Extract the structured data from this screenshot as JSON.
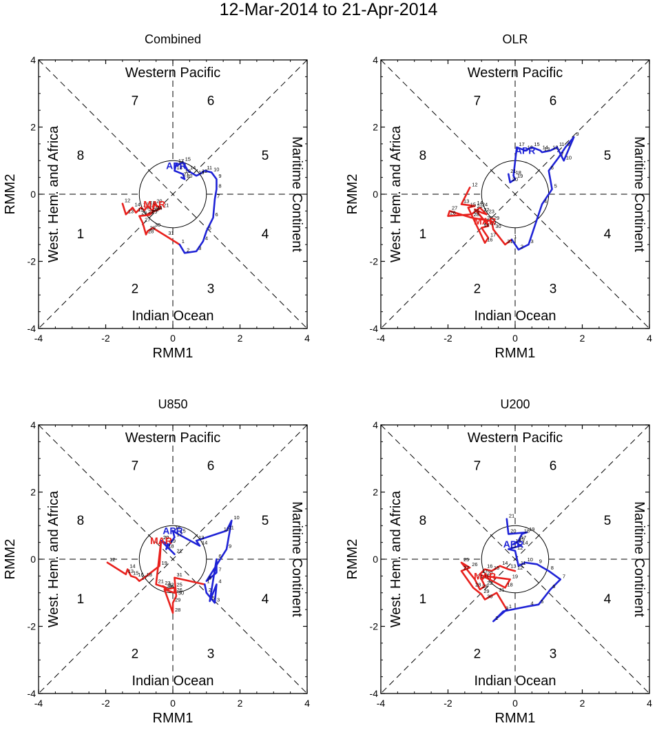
{
  "main_title": "12-Mar-2014 to 21-Apr-2014",
  "colors": {
    "march": "#e8211d",
    "april": "#1e22d6",
    "axis": "#000000"
  },
  "axis_labels": {
    "x": "RMM1",
    "y": "RMM2"
  },
  "region_labels": {
    "top": "Western Pacific",
    "bottom": "Indian Ocean",
    "left": "West. Hem. and Africa",
    "right": "Maritime Continent"
  },
  "phase_labels": [
    "1",
    "2",
    "3",
    "4",
    "5",
    "6",
    "7",
    "8"
  ],
  "tick_labels": [
    "-4",
    "-2",
    "0",
    "2",
    "4"
  ],
  "chart_data": [
    {
      "type": "line",
      "title": "Combined",
      "xlabel": "RMM1",
      "ylabel": "RMM2",
      "xlim": [
        -4,
        4
      ],
      "ylim": [
        -4,
        4
      ],
      "series": [
        {
          "name": "MAR",
          "color": "#e8211d",
          "points": [
            {
              "day": "12",
              "x": -1.5,
              "y": -0.28
            },
            {
              "day": "13",
              "x": -1.4,
              "y": -0.6
            },
            {
              "day": "14",
              "x": -1.2,
              "y": -0.4
            },
            {
              "day": "15",
              "x": -1.1,
              "y": -0.55
            },
            {
              "day": "16",
              "x": -0.95,
              "y": -0.4
            },
            {
              "day": "17",
              "x": -0.85,
              "y": -0.48
            },
            {
              "day": "18",
              "x": -0.75,
              "y": -0.35
            },
            {
              "day": "19",
              "x": -0.6,
              "y": -0.5
            },
            {
              "day": "20",
              "x": -0.55,
              "y": -0.3
            },
            {
              "day": "21",
              "x": -0.35,
              "y": -0.42
            },
            {
              "day": "22",
              "x": -0.65,
              "y": -0.55
            },
            {
              "day": "23",
              "x": -0.8,
              "y": -0.62
            },
            {
              "day": "24",
              "x": -0.55,
              "y": -0.5
            },
            {
              "day": "25",
              "x": -0.7,
              "y": -0.62
            },
            {
              "day": "26",
              "x": -1.0,
              "y": -0.65
            },
            {
              "day": "27",
              "x": -0.9,
              "y": -0.85
            },
            {
              "day": "28",
              "x": -0.8,
              "y": -1.2
            },
            {
              "day": "29",
              "x": -0.75,
              "y": -1.1
            },
            {
              "day": "30",
              "x": -0.6,
              "y": -1.0
            },
            {
              "day": "31",
              "x": -0.2,
              "y": -1.25
            }
          ]
        },
        {
          "name": "APR",
          "color": "#1e22d6",
          "points": [
            {
              "day": "1",
              "x": 0.2,
              "y": -1.5
            },
            {
              "day": "2",
              "x": 0.35,
              "y": -1.75
            },
            {
              "day": "3",
              "x": 0.7,
              "y": -1.7
            },
            {
              "day": "4",
              "x": 0.9,
              "y": -1.4
            },
            {
              "day": "5",
              "x": 1.0,
              "y": -1.1
            },
            {
              "day": "6",
              "x": 1.2,
              "y": -0.7
            },
            {
              "day": "7",
              "x": 1.25,
              "y": -0.15
            },
            {
              "day": "8",
              "x": 1.3,
              "y": 0.15
            },
            {
              "day": "9",
              "x": 1.3,
              "y": 0.45
            },
            {
              "day": "10",
              "x": 1.15,
              "y": 0.65
            },
            {
              "day": "11",
              "x": 0.95,
              "y": 0.7
            },
            {
              "day": "12",
              "x": 0.8,
              "y": 0.6
            },
            {
              "day": "13",
              "x": 0.7,
              "y": 0.55
            },
            {
              "day": "14",
              "x": 0.45,
              "y": 0.7
            },
            {
              "day": "15",
              "x": 0.3,
              "y": 0.95
            },
            {
              "day": "16",
              "x": 0.1,
              "y": 0.85
            },
            {
              "day": "17",
              "x": 0.1,
              "y": 0.9
            },
            {
              "day": "18",
              "x": 0.05,
              "y": 0.7
            },
            {
              "day": "19",
              "x": 0.3,
              "y": 0.6
            },
            {
              "day": "20",
              "x": 0.35,
              "y": 0.45
            },
            {
              "day": "21",
              "x": 0.25,
              "y": 0.5
            }
          ]
        }
      ]
    },
    {
      "type": "line",
      "title": "OLR",
      "xlabel": "RMM1",
      "ylabel": "RMM2",
      "xlim": [
        -4,
        4
      ],
      "ylim": [
        -4,
        4
      ],
      "series": [
        {
          "name": "MAR",
          "color": "#e8211d",
          "points": [
            {
              "day": "12",
              "x": -1.35,
              "y": 0.2
            },
            {
              "day": "13",
              "x": -1.6,
              "y": -0.3
            },
            {
              "day": "14",
              "x": -1.2,
              "y": -0.35
            },
            {
              "day": "15",
              "x": -1.4,
              "y": -0.4
            },
            {
              "day": "16",
              "x": -0.9,
              "y": -1.45
            },
            {
              "day": "17",
              "x": -0.8,
              "y": -1.3
            },
            {
              "day": "18",
              "x": -1.0,
              "y": -1.0
            },
            {
              "day": "19",
              "x": -0.8,
              "y": -0.95
            },
            {
              "day": "20",
              "x": -0.9,
              "y": -0.8
            },
            {
              "day": "21",
              "x": -1.2,
              "y": -0.45
            },
            {
              "day": "22",
              "x": -1.0,
              "y": -0.55
            },
            {
              "day": "23",
              "x": -0.85,
              "y": -0.6
            },
            {
              "day": "24",
              "x": -1.05,
              "y": -0.4
            },
            {
              "day": "25",
              "x": -1.3,
              "y": -0.6
            },
            {
              "day": "26",
              "x": -2.0,
              "y": -0.65
            },
            {
              "day": "27",
              "x": -1.95,
              "y": -0.5
            },
            {
              "day": "28",
              "x": -1.3,
              "y": -0.7
            },
            {
              "day": "29",
              "x": -0.7,
              "y": -0.8
            },
            {
              "day": "30",
              "x": -0.65,
              "y": -1.05
            },
            {
              "day": "31",
              "x": -0.3,
              "y": -1.5
            }
          ]
        },
        {
          "name": "APR",
          "color": "#1e22d6",
          "points": [
            {
              "day": "1",
              "x": -0.1,
              "y": -1.35
            },
            {
              "day": "2",
              "x": 0.1,
              "y": -1.65
            },
            {
              "day": "3",
              "x": 0.4,
              "y": -1.5
            },
            {
              "day": "4",
              "x": 0.8,
              "y": -0.3
            },
            {
              "day": "5",
              "x": 1.1,
              "y": 0.15
            },
            {
              "day": "6",
              "x": 1.0,
              "y": 0.7
            },
            {
              "day": "7",
              "x": 1.3,
              "y": 1.1
            },
            {
              "day": "8",
              "x": 1.5,
              "y": 1.4
            },
            {
              "day": "9",
              "x": 1.75,
              "y": 1.7
            },
            {
              "day": "10",
              "x": 1.45,
              "y": 1.0
            },
            {
              "day": "11",
              "x": 1.25,
              "y": 1.4
            },
            {
              "day": "12",
              "x": 1.05,
              "y": 1.3
            },
            {
              "day": "13",
              "x": 0.8,
              "y": 1.25
            },
            {
              "day": "14",
              "x": 0.75,
              "y": 1.3
            },
            {
              "day": "15",
              "x": 0.5,
              "y": 1.4
            },
            {
              "day": "16",
              "x": 0.3,
              "y": 1.3
            },
            {
              "day": "17",
              "x": 0.05,
              "y": 1.4
            },
            {
              "day": "18",
              "x": -0.05,
              "y": 0.55
            },
            {
              "day": "19",
              "x": 0.0,
              "y": 0.45
            },
            {
              "day": "20",
              "x": -0.15,
              "y": 0.35
            },
            {
              "day": "21",
              "x": -0.2,
              "y": 0.6
            }
          ]
        }
      ]
    },
    {
      "type": "line",
      "title": "U850",
      "xlabel": "RMM1",
      "ylabel": "RMM2",
      "xlim": [
        -4,
        4
      ],
      "ylim": [
        -4,
        4
      ],
      "series": [
        {
          "name": "MAR",
          "color": "#e8211d",
          "points": [
            {
              "day": "12",
              "x": -1.95,
              "y": -0.1
            },
            {
              "day": "13",
              "x": -1.4,
              "y": -0.45
            },
            {
              "day": "14",
              "x": -1.35,
              "y": -0.3
            },
            {
              "day": "15",
              "x": -1.25,
              "y": -0.5
            },
            {
              "day": "16",
              "x": -1.1,
              "y": -0.55
            },
            {
              "day": "17",
              "x": -1.0,
              "y": -0.65
            },
            {
              "day": "18",
              "x": -0.85,
              "y": -0.55
            },
            {
              "day": "19",
              "x": -0.4,
              "y": -0.2
            },
            {
              "day": "20",
              "x": -0.35,
              "y": 0.55
            },
            {
              "day": "21",
              "x": -0.5,
              "y": -0.75
            },
            {
              "day": "22",
              "x": -0.2,
              "y": -0.85
            },
            {
              "day": "23",
              "x": -0.3,
              "y": -0.8
            },
            {
              "day": "24",
              "x": -0.2,
              "y": -0.9
            },
            {
              "day": "25",
              "x": 0.05,
              "y": -0.85
            },
            {
              "day": "26",
              "x": 0.05,
              "y": -1.0
            },
            {
              "day": "27",
              "x": -0.25,
              "y": -0.9
            },
            {
              "day": "28",
              "x": 0.0,
              "y": -1.6
            },
            {
              "day": "29",
              "x": 0.0,
              "y": -1.3
            },
            {
              "day": "30",
              "x": 0.1,
              "y": -1.1
            },
            {
              "day": "31",
              "x": 0.05,
              "y": -0.55
            }
          ]
        },
        {
          "name": "APR",
          "color": "#1e22d6",
          "points": [
            {
              "day": "1",
              "x": 0.95,
              "y": -0.75
            },
            {
              "day": "2",
              "x": 1.0,
              "y": -1.0
            },
            {
              "day": "3",
              "x": 1.25,
              "y": -1.3
            },
            {
              "day": "4",
              "x": 1.3,
              "y": -0.75
            },
            {
              "day": "5",
              "x": 1.1,
              "y": -1.25
            },
            {
              "day": "6",
              "x": 1.3,
              "y": 0.0
            },
            {
              "day": "7",
              "x": 1.3,
              "y": -0.4
            },
            {
              "day": "8",
              "x": 1.0,
              "y": -0.65
            },
            {
              "day": "9",
              "x": 1.6,
              "y": 0.3
            },
            {
              "day": "10",
              "x": 1.75,
              "y": 1.15
            },
            {
              "day": "11",
              "x": 1.6,
              "y": 0.85
            },
            {
              "day": "12",
              "x": 1.45,
              "y": 0.8
            },
            {
              "day": "13",
              "x": 0.7,
              "y": 0.55
            },
            {
              "day": "14",
              "x": 0.8,
              "y": 0.4
            },
            {
              "day": "15",
              "x": 0.15,
              "y": 0.75
            },
            {
              "day": "16",
              "x": 0.0,
              "y": 0.85
            },
            {
              "day": "17",
              "x": 0.05,
              "y": 0.65
            },
            {
              "day": "18",
              "x": -0.2,
              "y": 0.3
            },
            {
              "day": "19",
              "x": -0.15,
              "y": 0.45
            },
            {
              "day": "20",
              "x": -0.35,
              "y": 0.55
            },
            {
              "day": "21",
              "x": 0.05,
              "y": 0.15
            }
          ]
        }
      ]
    },
    {
      "type": "line",
      "title": "U200",
      "xlabel": "RMM1",
      "ylabel": "RMM2",
      "xlim": [
        -4,
        4
      ],
      "ylim": [
        -4,
        4
      ],
      "series": [
        {
          "name": "MAR",
          "color": "#e8211d",
          "points": [
            {
              "day": "12",
              "x": 0.0,
              "y": -0.35
            },
            {
              "day": "13",
              "x": -0.2,
              "y": -0.3
            },
            {
              "day": "14",
              "x": -0.45,
              "y": -0.2
            },
            {
              "day": "15",
              "x": -0.7,
              "y": -0.35
            },
            {
              "day": "16",
              "x": -0.9,
              "y": -0.3
            },
            {
              "day": "17",
              "x": -1.05,
              "y": -0.45
            },
            {
              "day": "18",
              "x": -0.3,
              "y": -0.85
            },
            {
              "day": "19",
              "x": -0.15,
              "y": -0.6
            },
            {
              "day": "20",
              "x": -0.9,
              "y": -0.5
            },
            {
              "day": "21",
              "x": -1.0,
              "y": -0.6
            },
            {
              "day": "22",
              "x": -0.9,
              "y": -0.8
            },
            {
              "day": "23",
              "x": -1.05,
              "y": -0.9
            },
            {
              "day": "24",
              "x": -1.2,
              "y": -0.6
            },
            {
              "day": "25",
              "x": -1.6,
              "y": -0.1
            },
            {
              "day": "26",
              "x": -1.35,
              "y": -0.25
            },
            {
              "day": "27",
              "x": -1.6,
              "y": -0.35
            },
            {
              "day": "28",
              "x": -1.25,
              "y": -0.85
            },
            {
              "day": "29",
              "x": -1.0,
              "y": -1.05
            },
            {
              "day": "30",
              "x": -0.9,
              "y": -1.2
            },
            {
              "day": "31",
              "x": -0.55,
              "y": -1.0
            }
          ]
        },
        {
          "name": "APR",
          "color": "#1e22d6",
          "points": [
            {
              "day": "1",
              "x": -0.25,
              "y": -1.5
            },
            {
              "day": "2",
              "x": -0.65,
              "y": -1.85
            },
            {
              "day": "3",
              "x": -0.35,
              "y": -1.55
            },
            {
              "day": "4",
              "x": 0.4,
              "y": -1.4
            },
            {
              "day": "5",
              "x": 0.7,
              "y": -1.35
            },
            {
              "day": "6",
              "x": 1.05,
              "y": -0.9
            },
            {
              "day": "7",
              "x": 1.35,
              "y": -0.6
            },
            {
              "day": "8",
              "x": 1.0,
              "y": -0.35
            },
            {
              "day": "9",
              "x": 0.65,
              "y": -0.15
            },
            {
              "day": "10",
              "x": 0.3,
              "y": -0.1
            },
            {
              "day": "11",
              "x": 0.1,
              "y": -0.2
            },
            {
              "day": "12",
              "x": 0.0,
              "y": 0.25
            },
            {
              "day": "13",
              "x": -0.2,
              "y": 0.3
            },
            {
              "day": "14",
              "x": 0.15,
              "y": 0.4
            },
            {
              "day": "15",
              "x": 0.05,
              "y": 0.5
            },
            {
              "day": "16",
              "x": -0.05,
              "y": 0.45
            },
            {
              "day": "17",
              "x": 0.1,
              "y": 0.55
            },
            {
              "day": "18",
              "x": 0.2,
              "y": 0.75
            },
            {
              "day": "19",
              "x": 0.35,
              "y": 0.8
            },
            {
              "day": "20",
              "x": -0.2,
              "y": 0.75
            },
            {
              "day": "21",
              "x": -0.25,
              "y": 1.2
            }
          ]
        }
      ]
    }
  ]
}
